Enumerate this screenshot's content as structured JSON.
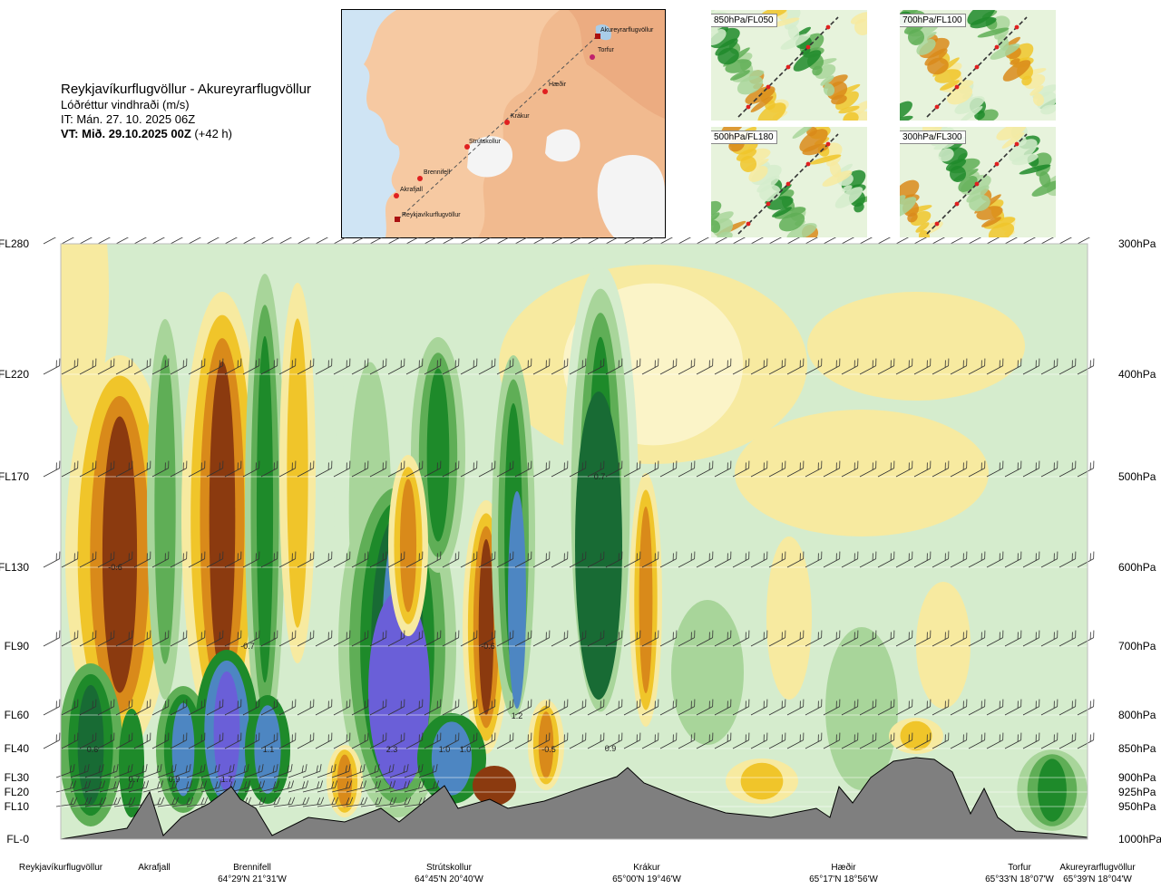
{
  "header": {
    "route": "Reykjavíkurflugvöllur - Akureyrarflugvöllur",
    "parameter": "Lóðréttur vindhraði (m/s)",
    "init_time": "IT: Mán. 27. 10. 2025 06Z",
    "valid_prefix": "VT: Mið. 29.10.2025 00Z",
    "valid_suffix": "(+42 h)"
  },
  "route_map": {
    "points": [
      "Akureyrarflugvöllur",
      "Torfur",
      "Hæðir",
      "Krákur",
      "Strútskollur",
      "Brennifell",
      "Akrafjall",
      "Reykjavíkurflugvöllur"
    ]
  },
  "mini_maps": [
    {
      "label": "850hPa/FL050"
    },
    {
      "label": "700hPa/FL100"
    },
    {
      "label": "500hPa/FL180"
    },
    {
      "label": "300hPa/FL300"
    }
  ],
  "chart_data": {
    "type": "heatmap",
    "left_axis_labels": [
      "FL280",
      "FL220",
      "FL170",
      "FL130",
      "FL90",
      "FL60",
      "FL40",
      "FL30",
      "FL20",
      "FL10",
      "FL-0"
    ],
    "right_axis_labels": [
      "300hPa",
      "400hPa",
      "500hPa",
      "600hPa",
      "700hPa",
      "800hPa",
      "850hPa",
      "900hPa",
      "925hPa",
      "950hPa",
      "1000hPa"
    ],
    "waypoints": [
      {
        "name": "Reykjavíkurflugvöllur",
        "coord": ""
      },
      {
        "name": "Akrafjall",
        "coord": ""
      },
      {
        "name": "Brennifell",
        "coord": "64°29'N 21°31'W"
      },
      {
        "name": "Strútskollur",
        "coord": "64°45'N 20°40'W"
      },
      {
        "name": "Krákur",
        "coord": "65°00'N 19°46'W"
      },
      {
        "name": "Hæðir",
        "coord": "65°17'N 18°56'W"
      },
      {
        "name": "Torfur",
        "coord": "65°33'N 18°07'W"
      },
      {
        "name": "Akureyrarflugvöllur",
        "coord": "65°39'N 18°04'W"
      }
    ],
    "value_labels": [
      "-0.6",
      "-0.7",
      "0.7",
      "-0.6",
      "1.2",
      "0.6",
      "0.7",
      "0.9",
      "1.7",
      "1.1",
      "2.3",
      "1.0",
      "1.0",
      "-0.5",
      "0.9"
    ],
    "colors": {
      "down_strong": "#8b3a0f",
      "down_mid": "#d98a1a",
      "down_weak": "#f0c52a",
      "down_faint": "#f7eaa0",
      "up_faint": "#d5eccd",
      "up_weak": "#a8d59a",
      "up_mid": "#5fae56",
      "up_strong": "#1e8a2a",
      "up_vstrong": "#186b34",
      "up_extreme": "#4d86c2",
      "up_max": "#6a5fd8",
      "terrain": "#7f7f7f"
    }
  }
}
